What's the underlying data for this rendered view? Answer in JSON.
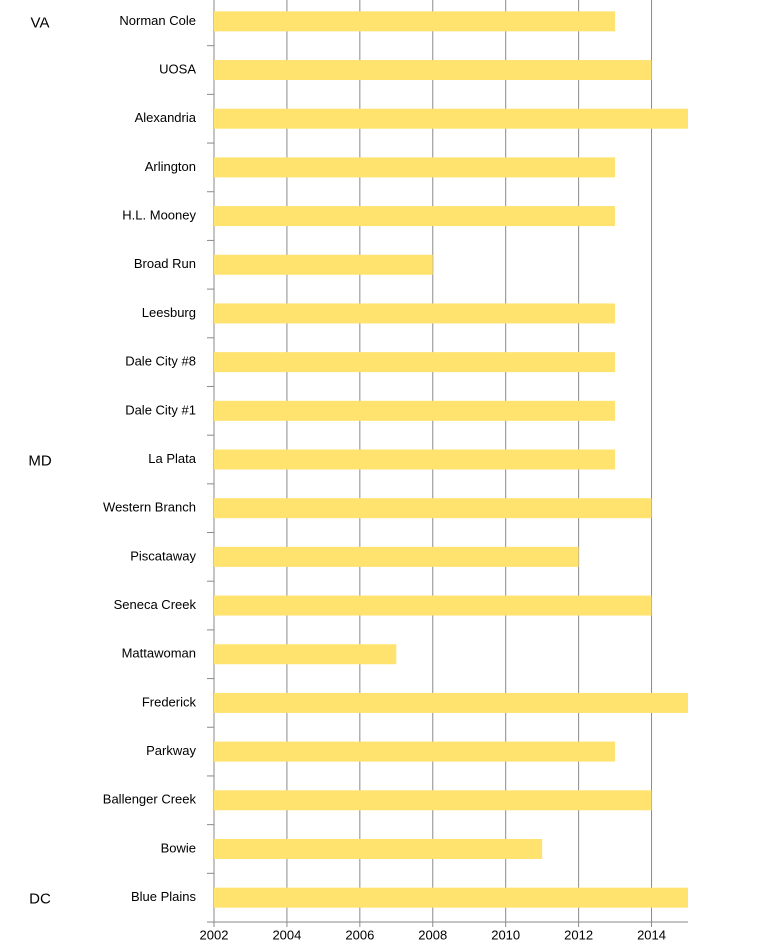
{
  "chart_data": {
    "type": "barh",
    "categories": [
      "Norman Cole",
      "UOSA",
      "Alexandria",
      "Arlington",
      "H.L. Mooney",
      "Broad Run",
      "Leesburg",
      "Dale City #8",
      "Dale City #1",
      "La Plata",
      "Western Branch",
      "Piscataway",
      "Seneca Creek",
      "Mattawoman",
      "Frederick",
      "Parkway",
      "Ballenger Creek",
      "Bowie",
      "Blue Plains"
    ],
    "values": [
      2013,
      2014,
      2015,
      2013,
      2013,
      2008,
      2013,
      2013,
      2013,
      2013,
      2014,
      2012,
      2014,
      2007,
      2015,
      2013,
      2014,
      2011,
      2015
    ],
    "color": "#ffe36e",
    "xlim": [
      2002,
      2015
    ],
    "xticks": [
      2002,
      2004,
      2006,
      2008,
      2010,
      2012,
      2014
    ],
    "grid": true,
    "annotations": [
      "VA",
      "MD",
      "DC"
    ]
  }
}
